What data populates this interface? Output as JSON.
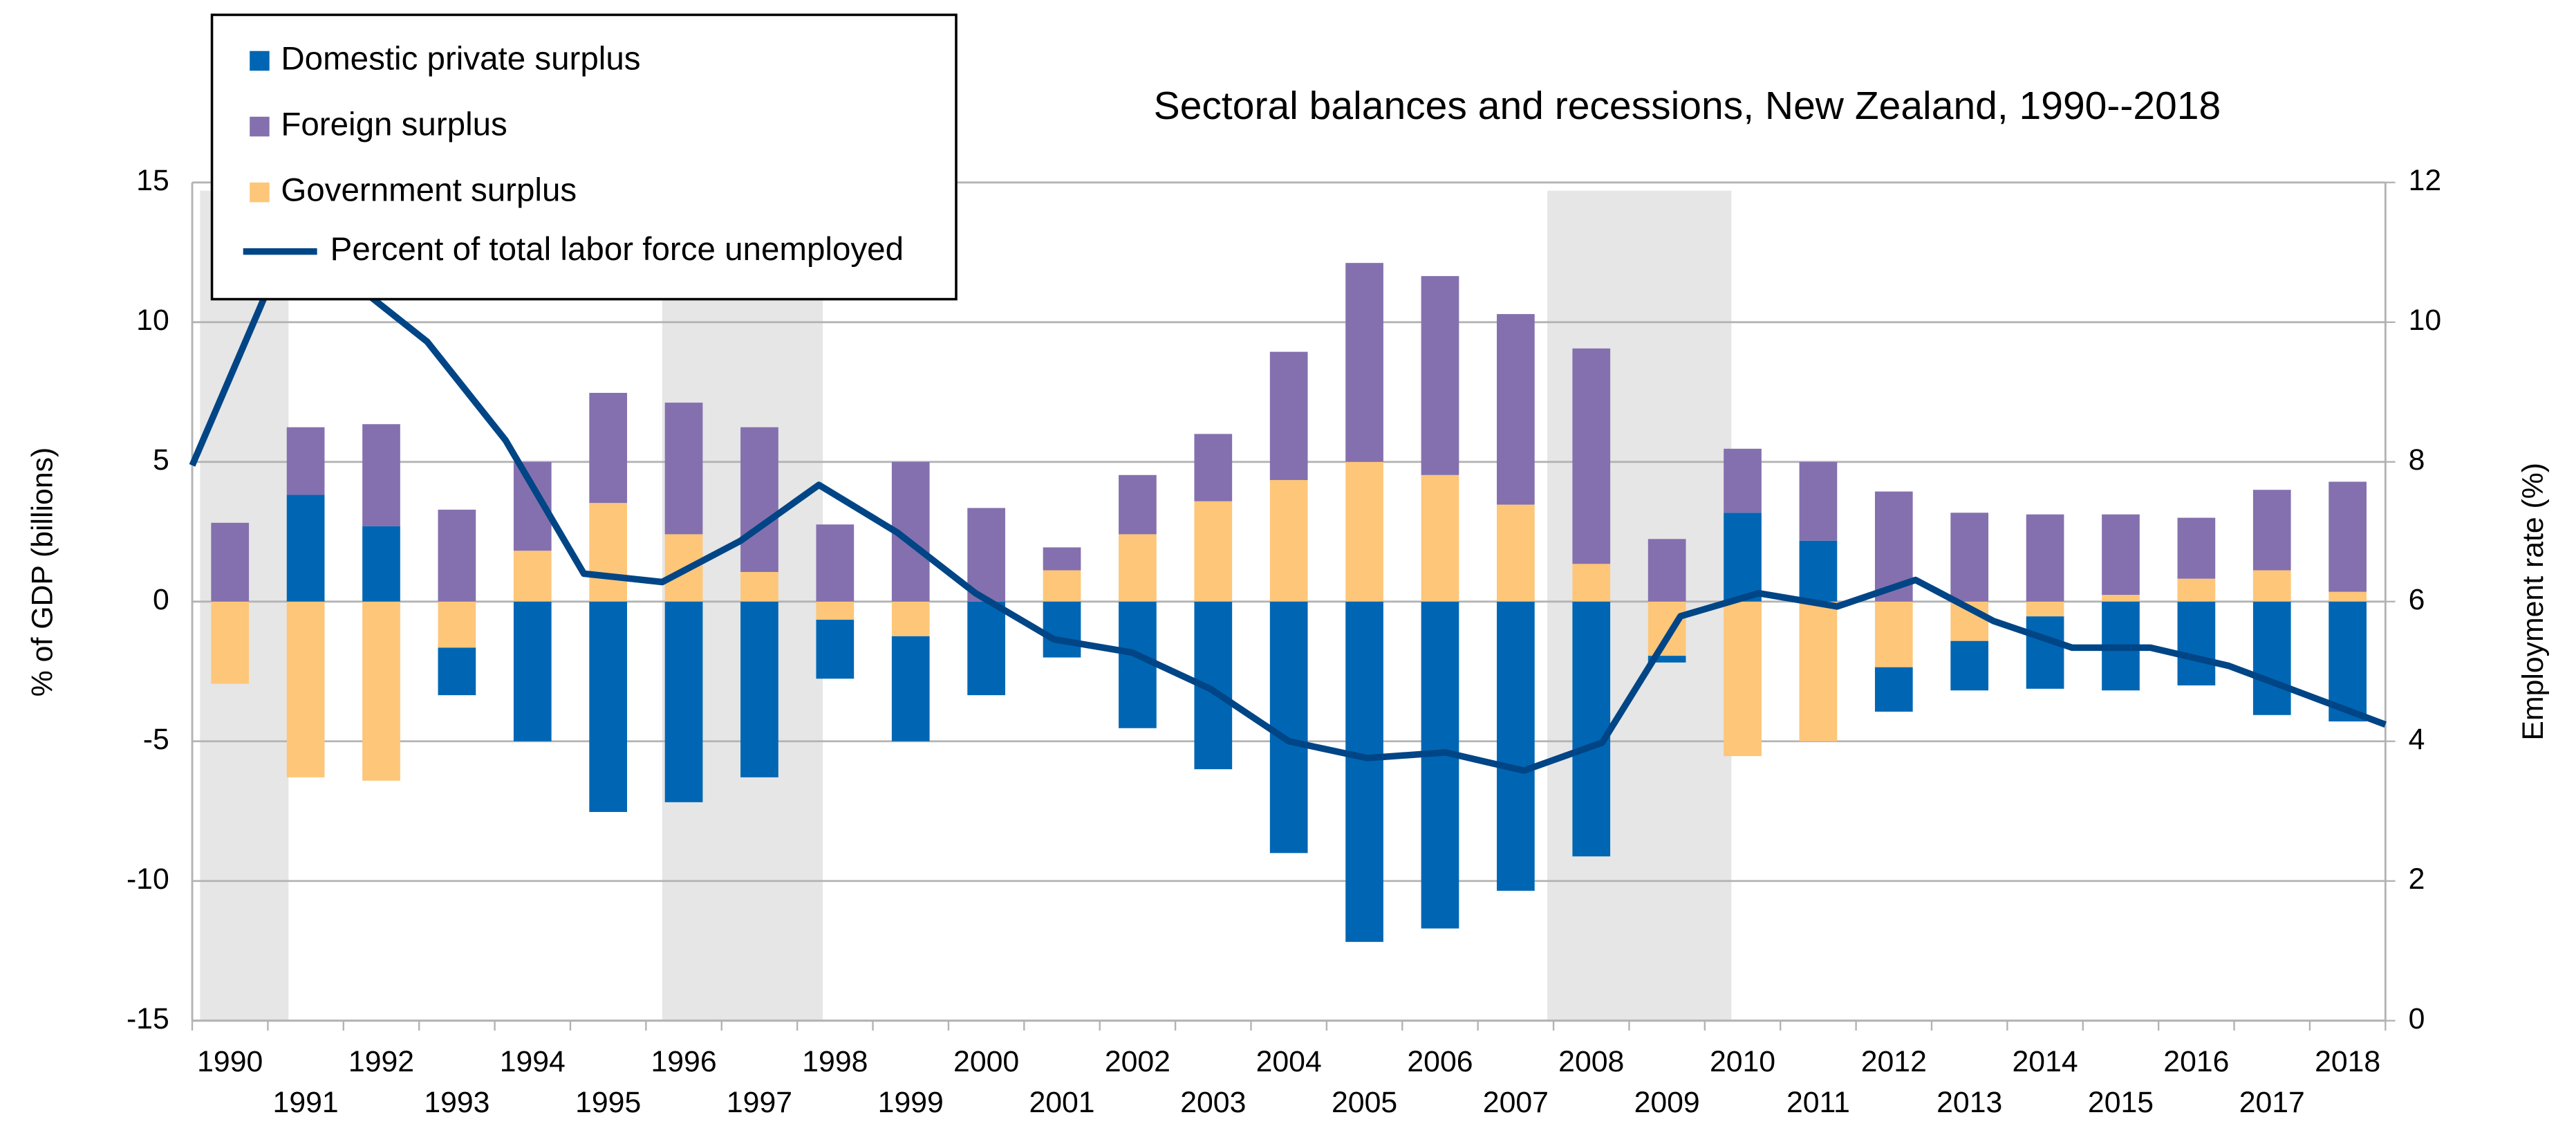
{
  "chart_data": {
    "type": "bar",
    "stacked": true,
    "title": "Sectoral balances and recessions, New Zealand, 1990--2018",
    "y_label": "% of GDP (billions)",
    "y2_label": "Employment rate (%)",
    "categories": [
      "1990",
      "1991",
      "1992",
      "1993",
      "1994",
      "1995",
      "1996",
      "1997",
      "1998",
      "1999",
      "2000",
      "2001",
      "2002",
      "2003",
      "2004",
      "2005",
      "2006",
      "2007",
      "2008",
      "2009",
      "2010",
      "2011",
      "2012",
      "2013",
      "2014",
      "2015",
      "2016",
      "2017",
      "2018"
    ],
    "series": [
      {
        "name": "Domestic private surplus",
        "color": "#0066b3",
        "values": [
          0,
          3.82,
          2.7,
          -1.7,
          -5.0,
          -7.53,
          -7.18,
          -6.29,
          -2.11,
          -3.76,
          -3.35,
          -2.0,
          -4.53,
          -6.0,
          -9.0,
          -12.18,
          -11.7,
          -10.35,
          -9.12,
          -0.24,
          3.18,
          2.18,
          -1.59,
          -1.77,
          -2.59,
          -3.18,
          -3.0,
          -4.06,
          -4.29
        ]
      },
      {
        "name": "Foreign surplus",
        "color": "#8470ae",
        "values": [
          2.82,
          2.42,
          3.65,
          3.29,
          3.18,
          3.94,
          4.71,
          5.18,
          2.76,
          5.0,
          3.35,
          0.82,
          2.12,
          2.41,
          4.59,
          7.12,
          7.12,
          6.82,
          7.71,
          2.24,
          2.29,
          2.82,
          3.94,
          3.18,
          3.12,
          2.88,
          2.18,
          2.88,
          3.94
        ]
      },
      {
        "name": "Government surplus",
        "color": "#fdc679",
        "values": [
          -2.94,
          -6.29,
          -6.41,
          -1.65,
          1.82,
          3.53,
          2.41,
          1.06,
          -0.65,
          -1.24,
          0,
          1.12,
          2.41,
          3.59,
          4.35,
          5.0,
          4.53,
          3.47,
          1.35,
          -1.94,
          -5.53,
          -5.0,
          -2.35,
          -1.41,
          -0.53,
          0.24,
          0.82,
          1.12,
          0.35
        ]
      },
      {
        "name": "Percent of total labor force unemployed",
        "type": "line",
        "axis": "y2",
        "color": "#004586",
        "values": [
          7.95,
          10.56,
          10.61,
          9.72,
          8.31,
          6.4,
          6.28,
          6.87,
          7.67,
          6.99,
          6.12,
          5.46,
          5.27,
          4.75,
          4.0,
          3.76,
          3.84,
          3.58,
          3.98,
          5.79,
          6.12,
          5.93,
          6.31,
          5.72,
          5.34,
          5.34,
          5.08,
          4.66,
          4.24
        ]
      }
    ],
    "recessions": [
      [
        1990.1,
        1991.23
      ],
      [
        1996.0,
        1998.05
      ],
      [
        2007.3,
        2009.65
      ]
    ],
    "recession_color": "#e6e6e6",
    "ylim": [
      -15,
      15
    ],
    "yticks": [
      -15,
      -10,
      -5,
      0,
      5,
      10,
      15
    ],
    "y2lim": [
      0,
      12
    ],
    "y2ticks": [
      0,
      2,
      4,
      6,
      8,
      10,
      12
    ],
    "grid": true,
    "legend": "top-left"
  }
}
